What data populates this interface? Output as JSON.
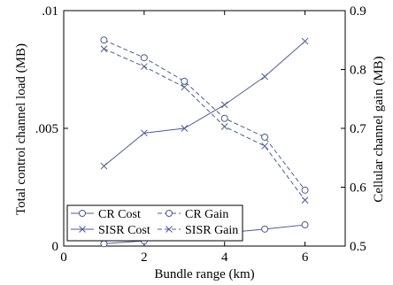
{
  "chart_data": {
    "type": "line",
    "xlabel": "Bundle range (km)",
    "ylabel": "Total control channel load (MB)",
    "y2label": "Cellular channel gain (MB)",
    "xlim": [
      0,
      7
    ],
    "ylim": [
      0,
      0.01
    ],
    "y2lim": [
      0.5,
      0.9
    ],
    "x_ticks": [
      0,
      2,
      4,
      6
    ],
    "x_tick_labels": [
      "0",
      "2",
      "4",
      "6"
    ],
    "y_ticks": [
      0,
      0.005,
      0.01
    ],
    "y_tick_labels": [
      "0",
      ".005",
      ".01"
    ],
    "y2_ticks": [
      0.5,
      0.6,
      0.7,
      0.8,
      0.9
    ],
    "y2_tick_labels": [
      "0.5",
      "0.6",
      "0.7",
      "0.8",
      "0.9"
    ],
    "grid": false,
    "legend_position": "bottom-left",
    "line_color": "#4a5d8f",
    "series": [
      {
        "name": "CR Cost",
        "axis": "left",
        "marker": "circle",
        "dash": "solid",
        "x": [
          1,
          2,
          3,
          4,
          5,
          6
        ],
        "y": [
          0.0001,
          0.00022,
          0.00038,
          0.00056,
          0.00072,
          0.0009
        ]
      },
      {
        "name": "SISR Cost",
        "axis": "left",
        "marker": "cross",
        "dash": "solid",
        "x": [
          1,
          2,
          3,
          4,
          5,
          6
        ],
        "y": [
          0.0034,
          0.0048,
          0.005,
          0.006,
          0.0072,
          0.0087
        ]
      },
      {
        "name": "CR Gain",
        "axis": "right",
        "marker": "circle",
        "dash": "dashed",
        "x": [
          1,
          2,
          3,
          4,
          5,
          6
        ],
        "y": [
          0.85,
          0.82,
          0.78,
          0.717,
          0.685,
          0.595
        ]
      },
      {
        "name": "SISR Gain",
        "axis": "right",
        "marker": "cross",
        "dash": "dashed",
        "x": [
          1,
          2,
          3,
          4,
          5,
          6
        ],
        "y": [
          0.835,
          0.805,
          0.77,
          0.703,
          0.67,
          0.578
        ]
      }
    ]
  }
}
